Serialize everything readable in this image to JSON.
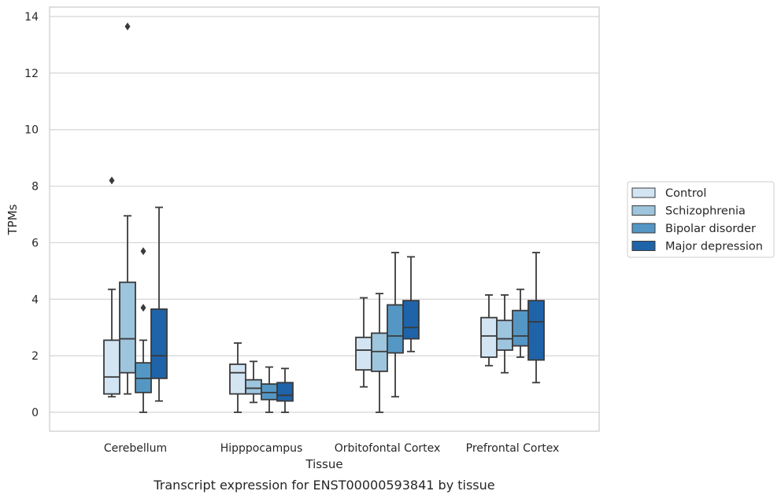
{
  "chart_data": {
    "type": "boxplot",
    "title": "",
    "caption": "Transcript expression for ENST00000593841 by tissue",
    "xlabel": "Tissue",
    "ylabel": "TPMs",
    "ylim": [
      -0.65,
      14.3
    ],
    "yticks": [
      0,
      2,
      4,
      6,
      8,
      10,
      12,
      14
    ],
    "grid": "horizontal",
    "legend_position": "right",
    "categories": [
      "Cerebellum",
      "Hipppocampus",
      "Orbitofontal Cortex",
      "Prefrontal Cortex"
    ],
    "series": [
      {
        "name": "Control",
        "color": "#d3e4f3",
        "boxes": [
          {
            "whislo": 0.55,
            "q1": 0.65,
            "med": 1.25,
            "q3": 2.55,
            "whishi": 4.35,
            "fliers": [
              8.2
            ]
          },
          {
            "whislo": 0.0,
            "q1": 0.65,
            "med": 1.4,
            "q3": 1.7,
            "whishi": 2.45,
            "fliers": []
          },
          {
            "whislo": 0.9,
            "q1": 1.5,
            "med": 2.2,
            "q3": 2.65,
            "whishi": 4.05,
            "fliers": []
          },
          {
            "whislo": 1.65,
            "q1": 1.95,
            "med": 2.7,
            "q3": 3.35,
            "whishi": 4.15,
            "fliers": []
          }
        ]
      },
      {
        "name": "Schizophrenia",
        "color": "#9dc5dd",
        "boxes": [
          {
            "whislo": 0.65,
            "q1": 1.4,
            "med": 2.6,
            "q3": 4.6,
            "whishi": 6.95,
            "fliers": [
              13.65
            ]
          },
          {
            "whislo": 0.35,
            "q1": 0.65,
            "med": 0.85,
            "q3": 1.15,
            "whishi": 1.8,
            "fliers": []
          },
          {
            "whislo": 0.0,
            "q1": 1.45,
            "med": 2.15,
            "q3": 2.8,
            "whishi": 4.2,
            "fliers": []
          },
          {
            "whislo": 1.4,
            "q1": 2.2,
            "med": 2.6,
            "q3": 3.25,
            "whishi": 4.15,
            "fliers": []
          }
        ]
      },
      {
        "name": "Bipolar disorder",
        "color": "#5497c5",
        "boxes": [
          {
            "whislo": 0.0,
            "q1": 0.7,
            "med": 1.2,
            "q3": 1.75,
            "whishi": 2.55,
            "fliers": [
              3.7,
              5.7
            ]
          },
          {
            "whislo": 0.0,
            "q1": 0.45,
            "med": 0.7,
            "q3": 1.0,
            "whishi": 1.6,
            "fliers": []
          },
          {
            "whislo": 0.55,
            "q1": 2.1,
            "med": 2.7,
            "q3": 3.8,
            "whishi": 5.65,
            "fliers": []
          },
          {
            "whislo": 1.95,
            "q1": 2.35,
            "med": 2.7,
            "q3": 3.6,
            "whishi": 4.35,
            "fliers": []
          }
        ]
      },
      {
        "name": "Major depression",
        "color": "#1f63a8",
        "boxes": [
          {
            "whislo": 0.4,
            "q1": 1.2,
            "med": 2.0,
            "q3": 3.65,
            "whishi": 7.25,
            "fliers": []
          },
          {
            "whislo": 0.0,
            "q1": 0.4,
            "med": 0.6,
            "q3": 1.05,
            "whishi": 1.55,
            "fliers": []
          },
          {
            "whislo": 2.15,
            "q1": 2.6,
            "med": 3.0,
            "q3": 3.95,
            "whishi": 5.5,
            "fliers": []
          },
          {
            "whislo": 1.05,
            "q1": 1.85,
            "med": 3.2,
            "q3": 3.95,
            "whishi": 5.65,
            "fliers": []
          }
        ]
      }
    ]
  }
}
